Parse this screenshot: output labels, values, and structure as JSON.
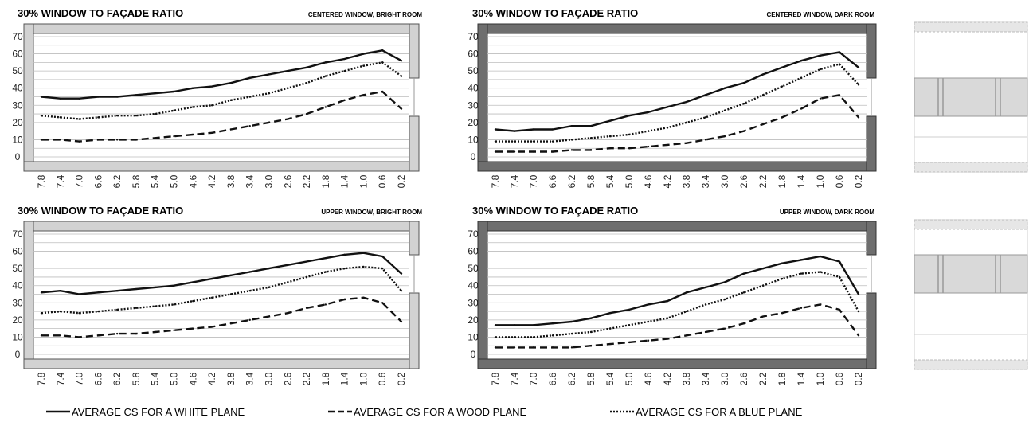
{
  "legend": [
    {
      "label": "AVERAGE CS FOR A WHITE PLANE",
      "style": "solid"
    },
    {
      "label": "AVERAGE CS FOR A WOOD PLANE",
      "style": "dashed"
    },
    {
      "label": "AVERAGE CS FOR A BLUE PLANE",
      "style": "dotted"
    }
  ],
  "colors": {
    "line": "#111111",
    "bright_frame": "#d2d2d2",
    "dark_frame": "#6e6e6e",
    "grid": "#bdbdbd"
  },
  "chart_data": [
    {
      "type": "line",
      "title": "30% WINDOW TO FAÇADE RATIO",
      "subtitle": "CENTERED WINDOW, BRIGHT ROOM",
      "room": "bright",
      "categories": [
        "7.8",
        "7.4",
        "7.0",
        "6.6",
        "6.2",
        "5.8",
        "5.4",
        "5.0",
        "4.6",
        "4.2",
        "3.8",
        "3.4",
        "3.0",
        "2.6",
        "2.2",
        "1.8",
        "1.4",
        "1.0",
        "0.6",
        "0.2"
      ],
      "ylim": [
        0,
        70
      ],
      "yticks": [
        "0",
        "10",
        "20",
        "30",
        "40",
        "50",
        "60",
        "70"
      ],
      "grid": true,
      "series": [
        {
          "style": "solid",
          "values": [
            35,
            34,
            34,
            35,
            35,
            36,
            37,
            38,
            40,
            41,
            43,
            46,
            48,
            50,
            52,
            55,
            57,
            60,
            62,
            56
          ]
        },
        {
          "style": "dashed",
          "values": [
            10,
            10,
            9,
            10,
            10,
            10,
            11,
            12,
            13,
            14,
            16,
            18,
            20,
            22,
            25,
            29,
            33,
            36,
            38,
            28
          ]
        },
        {
          "style": "dotted",
          "values": [
            24,
            23,
            22,
            23,
            24,
            24,
            25,
            27,
            29,
            30,
            33,
            35,
            37,
            40,
            43,
            47,
            50,
            53,
            55,
            47
          ]
        }
      ]
    },
    {
      "type": "line",
      "title": "30% WINDOW TO FAÇADE RATIO",
      "subtitle": "CENTERED WINDOW, DARK ROOM",
      "room": "dark",
      "categories": [
        "7.8",
        "7.4",
        "7.0",
        "6.6",
        "6.2",
        "5.8",
        "5.4",
        "5.0",
        "4.6",
        "4.2",
        "3.8",
        "3.4",
        "3.0",
        "2.6",
        "2.2",
        "1.8",
        "1.4",
        "1.0",
        "0.6",
        "0.2"
      ],
      "ylim": [
        0,
        70
      ],
      "yticks": [
        "0",
        "10",
        "20",
        "30",
        "40",
        "50",
        "60",
        "70"
      ],
      "grid": true,
      "series": [
        {
          "style": "solid",
          "values": [
            16,
            15,
            16,
            16,
            18,
            18,
            21,
            24,
            26,
            29,
            32,
            36,
            40,
            43,
            48,
            52,
            56,
            59,
            61,
            52
          ]
        },
        {
          "style": "dashed",
          "values": [
            3,
            3,
            3,
            3,
            4,
            4,
            5,
            5,
            6,
            7,
            8,
            10,
            12,
            15,
            19,
            23,
            28,
            34,
            36,
            23
          ]
        },
        {
          "style": "dotted",
          "values": [
            9,
            9,
            9,
            9,
            10,
            11,
            12,
            13,
            15,
            17,
            20,
            23,
            27,
            31,
            36,
            41,
            46,
            51,
            54,
            42
          ]
        }
      ]
    },
    {
      "type": "line",
      "title": "30% WINDOW TO FAÇADE RATIO",
      "subtitle": "UPPER WINDOW, BRIGHT ROOM",
      "room": "bright",
      "categories": [
        "7.8",
        "7.4",
        "7.0",
        "6.6",
        "6.2",
        "5.8",
        "5.4",
        "5.0",
        "4.6",
        "4.2",
        "3.8",
        "3.4",
        "3.0",
        "2.6",
        "2.2",
        "1.8",
        "1.4",
        "1.0",
        "0.6",
        "0.2"
      ],
      "ylim": [
        0,
        70
      ],
      "yticks": [
        "0",
        "10",
        "20",
        "30",
        "40",
        "50",
        "60",
        "70"
      ],
      "grid": true,
      "series": [
        {
          "style": "solid",
          "values": [
            36,
            37,
            35,
            36,
            37,
            38,
            39,
            40,
            42,
            44,
            46,
            48,
            50,
            52,
            54,
            56,
            58,
            59,
            57,
            47
          ]
        },
        {
          "style": "dashed",
          "values": [
            11,
            11,
            10,
            11,
            12,
            12,
            13,
            14,
            15,
            16,
            18,
            20,
            22,
            24,
            27,
            29,
            32,
            33,
            30,
            19
          ]
        },
        {
          "style": "dotted",
          "values": [
            24,
            25,
            24,
            25,
            26,
            27,
            28,
            29,
            31,
            33,
            35,
            37,
            39,
            42,
            45,
            48,
            50,
            51,
            50,
            37
          ]
        }
      ]
    },
    {
      "type": "line",
      "title": "30% WINDOW TO FAÇADE RATIO",
      "subtitle": "UPPER WINDOW, DARK ROOM",
      "room": "dark",
      "categories": [
        "7.8",
        "7.4",
        "7.0",
        "6.6",
        "6.2",
        "5.8",
        "5.4",
        "5.0",
        "4.6",
        "4.2",
        "3.8",
        "3.4",
        "3.0",
        "2.6",
        "2.2",
        "1.8",
        "1.4",
        "1.0",
        "0.6",
        "0.2"
      ],
      "ylim": [
        0,
        70
      ],
      "yticks": [
        "0",
        "10",
        "20",
        "30",
        "40",
        "50",
        "60",
        "70"
      ],
      "grid": true,
      "series": [
        {
          "style": "solid",
          "values": [
            17,
            17,
            17,
            18,
            19,
            21,
            24,
            26,
            29,
            31,
            36,
            39,
            42,
            47,
            50,
            53,
            55,
            57,
            54,
            35
          ]
        },
        {
          "style": "dashed",
          "values": [
            4,
            4,
            4,
            4,
            4,
            5,
            6,
            7,
            8,
            9,
            11,
            13,
            15,
            18,
            22,
            24,
            27,
            29,
            26,
            11
          ]
        },
        {
          "style": "dotted",
          "values": [
            10,
            10,
            10,
            11,
            12,
            13,
            15,
            17,
            19,
            21,
            25,
            29,
            32,
            36,
            40,
            44,
            47,
            48,
            45,
            25
          ]
        }
      ]
    }
  ]
}
